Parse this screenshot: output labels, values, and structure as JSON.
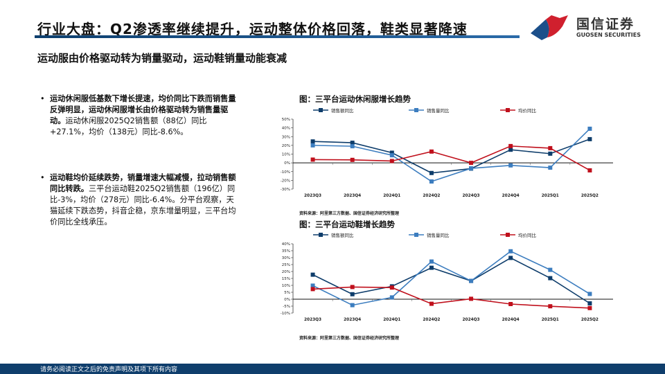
{
  "header": {
    "title": "行业大盘：Q2渗透率继续提升，运动整体价格回落，鞋类显著降速",
    "subtitle": "运动服由价格驱动转为销量驱动，运动鞋销量动能衰减"
  },
  "logo": {
    "cn": "国信证券",
    "en": "GUOSEN SECURITIES",
    "colors": [
      "#1b4f8a",
      "#d0202e"
    ]
  },
  "bullets": [
    {
      "bold": "运动休闲服低基数下增长提速，均价同比下跌而销售量反弹明显，运动休闲服增长由价格驱动转为销售量驱动。",
      "text": "运动休闲服2025Q2销售额（88亿）同比+27.1%，均价（138元）同比-8.6%。"
    },
    {
      "bold": "运动鞋均价延续跌势，销量增速大幅减慢，拉动销售额同比转跌。",
      "text": "三平台运动鞋2025Q2销售额（196亿）同比-3%，均价（278元）同比-6.4%。分平台观察，天猫延续下跌态势，抖音企稳，京东增量明显，三平台均价同比全线承压。"
    }
  ],
  "footer": "请务必阅读正文之后的免责声明及其项下所有内容",
  "chart_data": [
    {
      "type": "line",
      "title": "图：三平台运动休闲服增长趋势",
      "source": "资料来源：阿里第三方数据、国信证券经济研究所整理",
      "categories": [
        "2023Q3",
        "2023Q4",
        "2024Q1",
        "2024Q2",
        "2024Q3",
        "2024Q4",
        "2025Q1",
        "2025Q2"
      ],
      "ylim": [
        -30,
        50
      ],
      "ystep": 10,
      "yformat": "percent",
      "legend": "top",
      "series": [
        {
          "name": "销售额同比",
          "color": "#0e3d6b",
          "values": [
            24.5,
            23,
            11.6,
            -11.6,
            -6.6,
            15,
            10.5,
            27.1
          ]
        },
        {
          "name": "销售量同比",
          "color": "#3c7dbf",
          "values": [
            20,
            19,
            8.7,
            -21.3,
            -6.3,
            -2.9,
            -5.5,
            39
          ]
        },
        {
          "name": "均价同比",
          "color": "#c0101c",
          "values": [
            3.7,
            3.4,
            2.1,
            12.9,
            0,
            19.2,
            16.8,
            -8.6
          ]
        }
      ]
    },
    {
      "type": "line",
      "title": "图：三平台运动鞋增长趋势",
      "source": "资料来源：阿里第三方数据、国信证券经济研究所整理",
      "categories": [
        "2023Q3",
        "2023Q4",
        "2024Q1",
        "2024Q2",
        "2024Q3",
        "2024Q4",
        "2025Q1",
        "2025Q2"
      ],
      "ylim": [
        -10,
        40
      ],
      "ystep": 5,
      "yformat": "percent",
      "legend": "top",
      "series": [
        {
          "name": "销售额同比",
          "color": "#0e3d6b",
          "values": [
            17.7,
            3.6,
            9.3,
            22.7,
            13.2,
            29.8,
            15.2,
            -3
          ]
        },
        {
          "name": "销售量同比",
          "color": "#3c7dbf",
          "values": [
            9.8,
            -4.3,
            1.3,
            27.2,
            13.2,
            34.6,
            21.2,
            3.8
          ]
        },
        {
          "name": "均价同比",
          "color": "#c0101c",
          "values": [
            7.3,
            8.8,
            8.4,
            -3.3,
            0.3,
            -3.5,
            -5.1,
            -6.4
          ]
        }
      ]
    }
  ]
}
